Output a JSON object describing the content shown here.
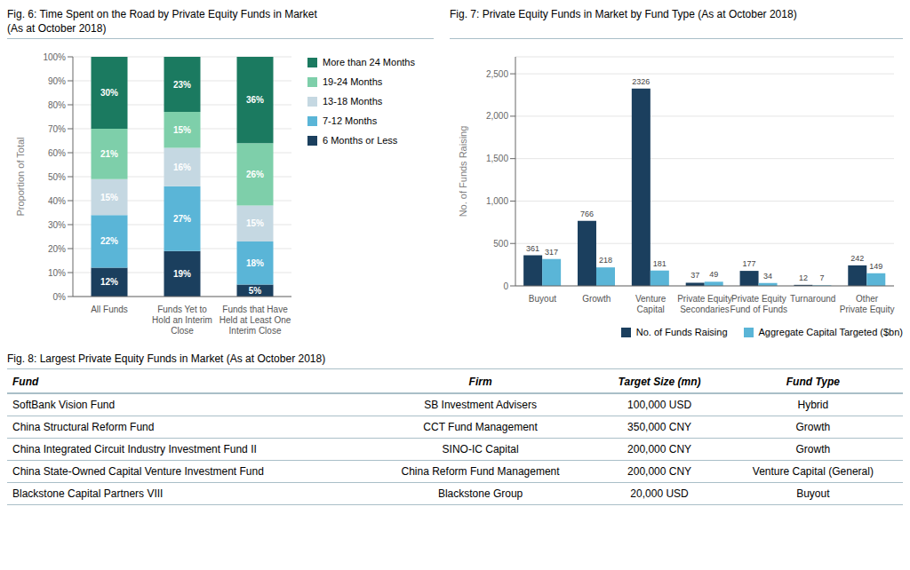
{
  "chart_data": [
    {
      "type": "bar",
      "title": "Fig. 6: Time Spent on the Road by Private Equity Funds in Market",
      "subtitle": "(As at October 2018)",
      "categories": [
        "All Funds",
        "Funds Yet to\nHold an Interim\nClose",
        "Funds that Have\nHeld at Least One\nInterim Close"
      ],
      "series": [
        {
          "name": "6 Months or Less",
          "color": "#1b3f5e",
          "values": [
            12,
            19,
            5
          ],
          "value_labels": [
            "12%",
            "19%",
            "5%"
          ]
        },
        {
          "name": "7-12 Months",
          "color": "#5ab5d7",
          "values": [
            22,
            27,
            18
          ],
          "value_labels": [
            "22%",
            "27%",
            "18%"
          ]
        },
        {
          "name": "13-18 Months",
          "color": "#c5d8e2",
          "values": [
            15,
            16,
            15
          ],
          "value_labels": [
            "15%",
            "16%",
            "15%"
          ]
        },
        {
          "name": "19-24 Months",
          "color": "#7ecfaa",
          "values": [
            21,
            15,
            26
          ],
          "value_labels": [
            "21%",
            "15%",
            "26%"
          ]
        },
        {
          "name": "More than 24 Months",
          "color": "#1b7a60",
          "values": [
            30,
            23,
            36
          ],
          "value_labels": [
            "30%",
            "23%",
            "36%"
          ]
        }
      ],
      "stacked": true,
      "data_labels": true,
      "ylabel": "Proportion of Total",
      "ylim": [
        0,
        100
      ],
      "yticks": [
        {
          "value": 0,
          "label": "0%"
        },
        {
          "value": 10,
          "label": "10%"
        },
        {
          "value": 20,
          "label": "20%"
        },
        {
          "value": 30,
          "label": "30%"
        },
        {
          "value": 40,
          "label": "40%"
        },
        {
          "value": 50,
          "label": "50%"
        },
        {
          "value": 60,
          "label": "60%"
        },
        {
          "value": 70,
          "label": "70%"
        },
        {
          "value": 80,
          "label": "80%"
        },
        {
          "value": 90,
          "label": "90%"
        },
        {
          "value": 100,
          "label": "100%"
        }
      ],
      "grid": true,
      "legend": "right"
    },
    {
      "type": "bar",
      "title": "Fig. 7: Private Equity Funds in Market by Fund Type (As at October 2018)",
      "categories": [
        "Buyout",
        "Growth",
        "Venture\nCapital",
        "Private Equity\nSecondaries",
        "Private Equity\nFund of Funds",
        "Turnaround",
        "Other\nPrivate Equity"
      ],
      "series": [
        {
          "name": "No. of Funds Raising",
          "color": "#1b3f5e",
          "values": [
            361,
            766,
            2326,
            37,
            177,
            12,
            242
          ]
        },
        {
          "name": "Aggregate Capital Targeted ($bn)",
          "color": "#5ab5d7",
          "values": [
            317,
            218,
            181,
            49,
            34,
            7,
            149
          ]
        }
      ],
      "data_labels": true,
      "ylabel": "No. of Funds Raising",
      "ylim": [
        0,
        2700
      ],
      "yticks": [
        0,
        500,
        {
          "value": 1000,
          "label": "1,000"
        },
        {
          "value": 1500,
          "label": "1,500"
        },
        {
          "value": 2000,
          "label": "2,000"
        },
        {
          "value": 2500,
          "label": "2,500"
        }
      ],
      "grid": true,
      "legend": "lower right"
    },
    {
      "type": "table",
      "title": "Fig. 8: Largest Private Equity Funds in Market (As at October 2018)",
      "columns": [
        "Fund",
        "Firm",
        "Target Size (mn)",
        "Fund Type"
      ],
      "rows": [
        [
          "SoftBank Vision Fund",
          "SB Investment Advisers",
          "100,000 USD",
          "Hybrid"
        ],
        [
          "China Structural Reform Fund",
          "CCT Fund Management",
          "350,000 CNY",
          "Growth"
        ],
        [
          "China Integrated Circuit Industry Investment Fund II",
          "SINO-IC Capital",
          "200,000 CNY",
          "Growth"
        ],
        [
          "China State-Owned Capital Venture Investment Fund",
          "China Reform Fund Management",
          "200,000 CNY",
          "Venture Capital (General)"
        ],
        [
          "Blackstone Capital Partners VIII",
          "Blackstone Group",
          "20,000 USD",
          "Buyout"
        ]
      ]
    }
  ]
}
